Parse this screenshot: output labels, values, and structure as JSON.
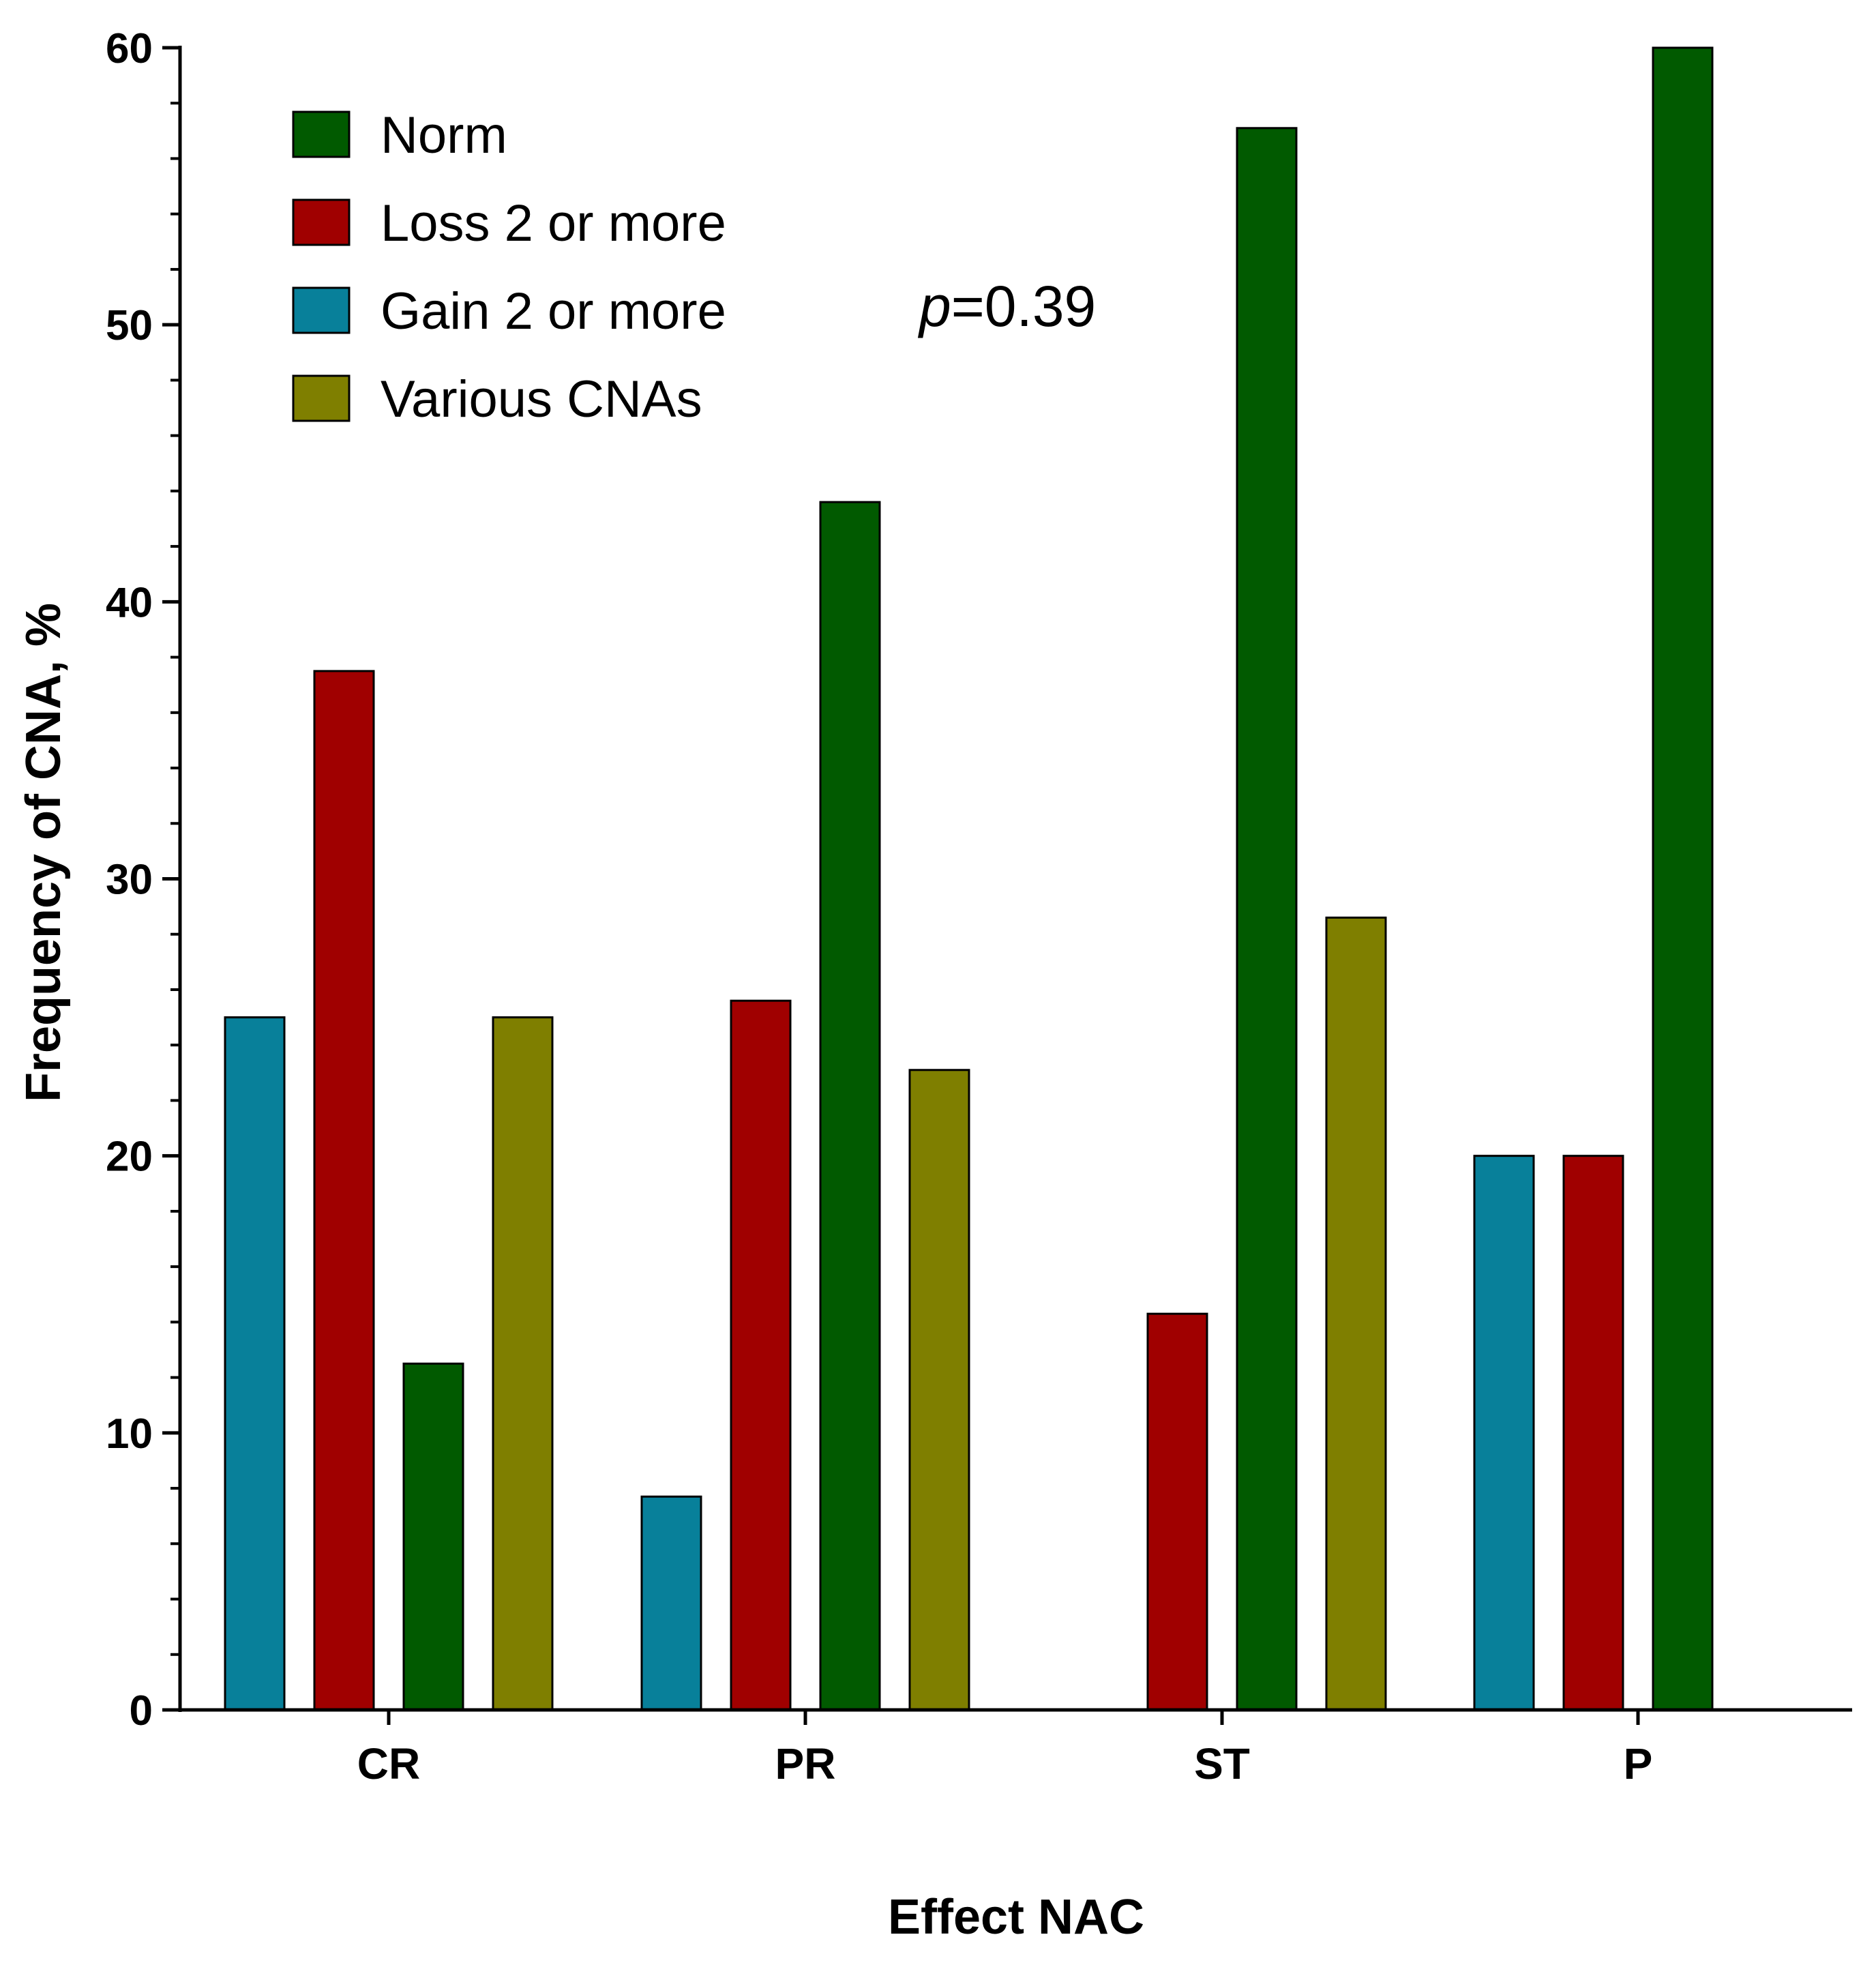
{
  "chart_data": {
    "type": "bar",
    "title": "",
    "xlabel": "Effect NAC",
    "ylabel": "Frequency of CNA, %",
    "ylim": [
      0,
      60
    ],
    "yticks": [
      0,
      10,
      20,
      30,
      40,
      50,
      60
    ],
    "categories": [
      "CR",
      "PR",
      "ST",
      "P"
    ],
    "series": [
      {
        "name": "Gain 2 or more",
        "color": "#08809a",
        "values": [
          25,
          7.7,
          0,
          20
        ]
      },
      {
        "name": "Loss 2 or more",
        "color": "#a00000",
        "values": [
          37.5,
          25.6,
          14.3,
          20
        ]
      },
      {
        "name": "Norm",
        "color": "#015a00",
        "values": [
          12.5,
          43.6,
          57.1,
          60
        ]
      },
      {
        "name": "Various CNAs",
        "color": "#7f7f00",
        "values": [
          25,
          23.1,
          28.6,
          0
        ]
      }
    ],
    "legend": {
      "position": "top-left",
      "order": [
        "Norm",
        "Loss 2 or more",
        "Gain 2 or more",
        "Various CNAs"
      ]
    },
    "annotation": {
      "italic_part": "p",
      "text": "=0.39"
    }
  }
}
